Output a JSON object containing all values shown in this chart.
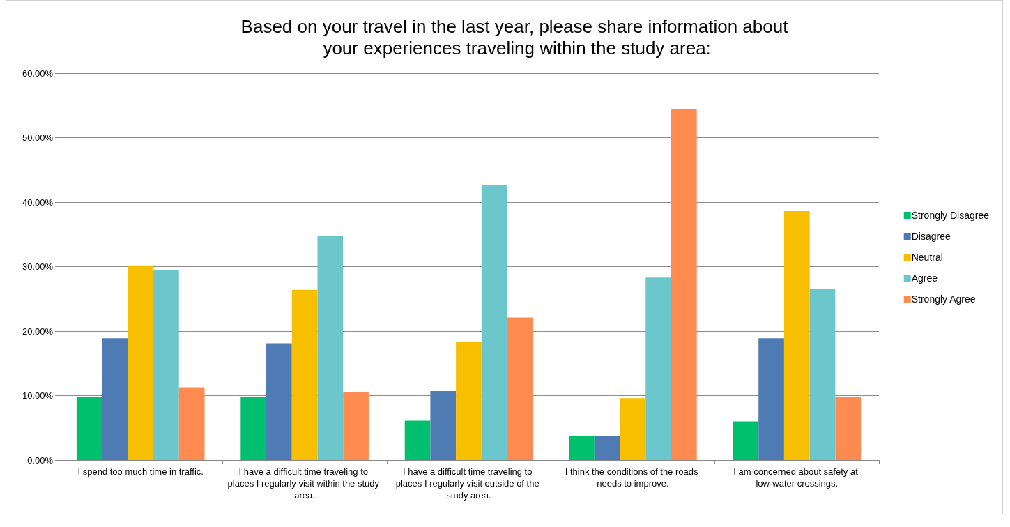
{
  "chart_data": {
    "type": "bar",
    "title": "Based on your travel in the last year, please share information about your experiences traveling within the study area:",
    "categories": [
      "I spend too much time in traffic.",
      "I have a difficult time traveling to places I regularly visit within the study area.",
      "I have a difficult time traveling to places I regularly visit outside of the study area.",
      "I think the conditions of the roads needs to improve.",
      "I am concerned about safety at low-water crossings."
    ],
    "series": [
      {
        "name": "Strongly Disagree",
        "color": "#00bf6f",
        "values": [
          9.8,
          9.8,
          6.1,
          3.7,
          6.0
        ]
      },
      {
        "name": "Disagree",
        "color": "#4f7bb5",
        "values": [
          18.9,
          18.1,
          10.7,
          3.7,
          18.9
        ]
      },
      {
        "name": "Neutral",
        "color": "#f8be00",
        "values": [
          30.2,
          26.4,
          18.3,
          9.6,
          38.6
        ]
      },
      {
        "name": "Agree",
        "color": "#6cc7cc",
        "values": [
          29.5,
          34.8,
          42.7,
          28.3,
          26.5
        ]
      },
      {
        "name": "Strongly Agree",
        "color": "#ff8b50",
        "values": [
          11.3,
          10.5,
          22.1,
          54.4,
          9.8
        ]
      }
    ],
    "ylim": [
      0,
      60
    ],
    "yticks": [
      {
        "value": 0,
        "label": "0.00%"
      },
      {
        "value": 10,
        "label": "10.00%"
      },
      {
        "value": 20,
        "label": "20.00%"
      },
      {
        "value": 30,
        "label": "30.00%"
      },
      {
        "value": 40,
        "label": "40.00%"
      },
      {
        "value": 50,
        "label": "50.00%"
      },
      {
        "value": 60,
        "label": "60.00%"
      }
    ],
    "grid": "y",
    "legend": "right"
  }
}
